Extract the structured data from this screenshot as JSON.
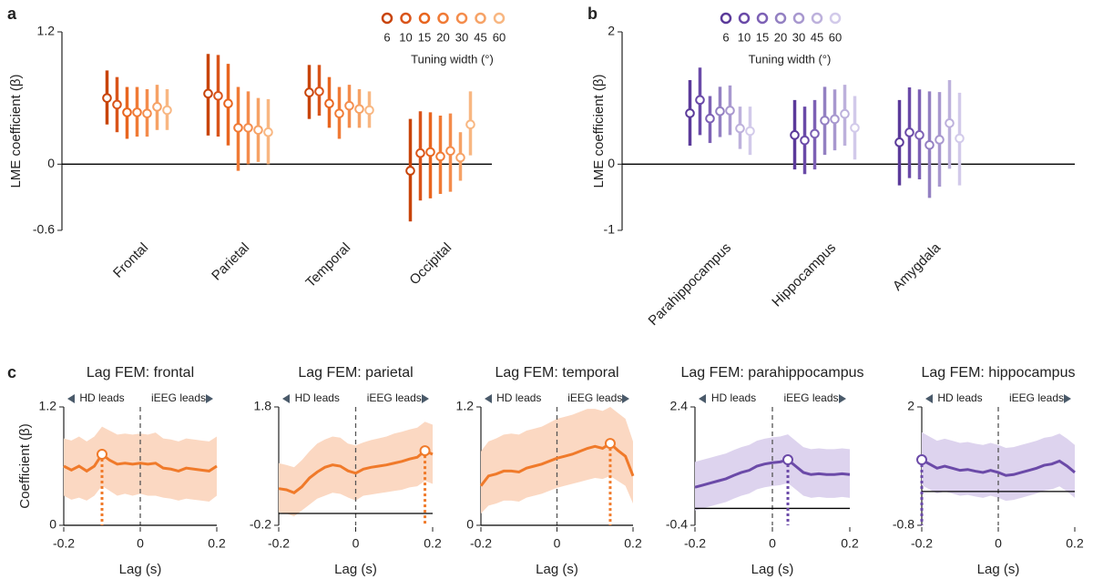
{
  "chart_data": [
    {
      "type": "errorbar",
      "panel_label": "a",
      "ylabel": "LME coefficient (β)",
      "legend_title": "Tuning width (°)",
      "categories": [
        "Frontal",
        "Parietal",
        "Temporal",
        "Occipital"
      ],
      "ylim": [
        -0.6,
        1.2
      ],
      "yticks": [
        -0.6,
        0,
        1.2
      ],
      "series": [
        {
          "name": "6",
          "color": "#c8440a",
          "values": [
            0.6,
            0.64,
            0.65,
            -0.06
          ],
          "lower": [
            0.36,
            0.26,
            0.41,
            -0.52
          ],
          "upper": [
            0.85,
            1.0,
            0.9,
            0.41
          ]
        },
        {
          "name": "10",
          "color": "#d9541a",
          "values": [
            0.54,
            0.62,
            0.66,
            0.1
          ],
          "lower": [
            0.29,
            0.25,
            0.44,
            -0.33
          ],
          "upper": [
            0.79,
            0.99,
            0.9,
            0.48
          ]
        },
        {
          "name": "15",
          "color": "#e8651f",
          "values": [
            0.47,
            0.55,
            0.55,
            0.11
          ],
          "lower": [
            0.23,
            0.17,
            0.33,
            -0.31
          ],
          "upper": [
            0.7,
            0.91,
            0.79,
            0.47
          ]
        },
        {
          "name": "20",
          "color": "#f07a35",
          "values": [
            0.47,
            0.33,
            0.46,
            0.07
          ],
          "lower": [
            0.25,
            -0.06,
            0.23,
            -0.27
          ],
          "upper": [
            0.7,
            0.7,
            0.7,
            0.44
          ]
        },
        {
          "name": "30",
          "color": "#f48c4c",
          "values": [
            0.46,
            0.33,
            0.53,
            0.12
          ],
          "lower": [
            0.25,
            0.0,
            0.33,
            -0.25
          ],
          "upper": [
            0.68,
            0.66,
            0.72,
            0.46
          ]
        },
        {
          "name": "45",
          "color": "#f6a266",
          "values": [
            0.52,
            0.31,
            0.5,
            0.06
          ],
          "lower": [
            0.31,
            0.02,
            0.33,
            -0.15
          ],
          "upper": [
            0.72,
            0.6,
            0.68,
            0.29
          ]
        },
        {
          "name": "60",
          "color": "#f8b782",
          "values": [
            0.49,
            0.29,
            0.49,
            0.36
          ],
          "lower": [
            0.31,
            0.0,
            0.33,
            0.08
          ],
          "upper": [
            0.68,
            0.59,
            0.66,
            0.66
          ]
        }
      ]
    },
    {
      "type": "errorbar",
      "panel_label": "b",
      "ylabel": "LME coefficient (β)",
      "legend_title": "Tuning width (°)",
      "categories": [
        "Parahippocampus",
        "Hippocampus",
        "Amygdala"
      ],
      "ylim": [
        -1,
        2
      ],
      "yticks": [
        -1,
        0,
        2
      ],
      "series": [
        {
          "name": "6",
          "color": "#5b3a9a",
          "values": [
            0.77,
            0.44,
            0.33
          ],
          "lower": [
            0.28,
            -0.08,
            -0.32
          ],
          "upper": [
            1.27,
            0.97,
            0.97
          ]
        },
        {
          "name": "10",
          "color": "#6a4aa8",
          "values": [
            0.97,
            0.36,
            0.48
          ],
          "lower": [
            0.44,
            -0.15,
            -0.21
          ],
          "upper": [
            1.46,
            0.87,
            1.16
          ]
        },
        {
          "name": "15",
          "color": "#7d61b5",
          "values": [
            0.69,
            0.46,
            0.44
          ],
          "lower": [
            0.32,
            -0.08,
            -0.23
          ],
          "upper": [
            1.03,
            0.97,
            1.13
          ]
        },
        {
          "name": "20",
          "color": "#9380c2",
          "values": [
            0.8,
            0.66,
            0.29
          ],
          "lower": [
            0.41,
            0.14,
            -0.51
          ],
          "upper": [
            1.17,
            1.17,
            1.1
          ]
        },
        {
          "name": "30",
          "color": "#a898cf",
          "values": [
            0.81,
            0.68,
            0.37
          ],
          "lower": [
            0.44,
            0.21,
            -0.34
          ],
          "upper": [
            1.19,
            1.13,
            1.09
          ]
        },
        {
          "name": "45",
          "color": "#bdb1dc",
          "values": [
            0.54,
            0.76,
            0.62
          ],
          "lower": [
            0.23,
            0.28,
            -0.07
          ],
          "upper": [
            0.87,
            1.2,
            1.27
          ]
        },
        {
          "name": "60",
          "color": "#d2caea",
          "values": [
            0.5,
            0.55,
            0.39
          ],
          "lower": [
            0.14,
            0.07,
            -0.32
          ],
          "upper": [
            0.87,
            1.03,
            1.08
          ]
        }
      ]
    },
    {
      "type": "line",
      "panel_label": "c",
      "title": "Lag FEM: frontal",
      "ylabel": "Coefficient (β)",
      "xlabel": "Lag (s)",
      "annotations": [
        "HD leads",
        "iEEG leads"
      ],
      "x": [
        -0.2,
        -0.18,
        -0.16,
        -0.14,
        -0.12,
        -0.1,
        -0.08,
        -0.06,
        -0.04,
        -0.02,
        0,
        0.02,
        0.04,
        0.06,
        0.08,
        0.1,
        0.12,
        0.14,
        0.16,
        0.18,
        0.2
      ],
      "xlim": [
        -0.2,
        0.2
      ],
      "xticks": [
        -0.2,
        0,
        0.2
      ],
      "ylim": [
        0,
        1.2
      ],
      "yticks": [
        0,
        1.2
      ],
      "series": [
        {
          "color": "#f07a2a",
          "band_color": "#fbd8c2",
          "values": [
            0.6,
            0.56,
            0.6,
            0.55,
            0.6,
            0.72,
            0.66,
            0.62,
            0.63,
            0.62,
            0.63,
            0.62,
            0.63,
            0.58,
            0.57,
            0.55,
            0.58,
            0.57,
            0.56,
            0.55,
            0.6
          ],
          "lower": [
            0.3,
            0.26,
            0.28,
            0.25,
            0.3,
            0.4,
            0.35,
            0.3,
            0.32,
            0.3,
            0.32,
            0.3,
            0.3,
            0.28,
            0.27,
            0.25,
            0.27,
            0.26,
            0.25,
            0.24,
            0.3
          ],
          "upper": [
            0.88,
            0.86,
            0.9,
            0.85,
            0.9,
            1.0,
            0.96,
            0.92,
            0.93,
            0.92,
            0.93,
            0.92,
            0.94,
            0.88,
            0.87,
            0.85,
            0.88,
            0.87,
            0.86,
            0.85,
            0.9
          ]
        }
      ]
    },
    {
      "type": "line",
      "title": "Lag FEM: parietal",
      "xlabel": "Lag (s)",
      "annotations": [
        "HD leads",
        "iEEG leads"
      ],
      "x": [
        -0.2,
        -0.18,
        -0.16,
        -0.14,
        -0.12,
        -0.1,
        -0.08,
        -0.06,
        -0.04,
        -0.02,
        0,
        0.02,
        0.04,
        0.06,
        0.08,
        0.1,
        0.12,
        0.14,
        0.16,
        0.18,
        0.2
      ],
      "xlim": [
        -0.2,
        0.2
      ],
      "xticks": [
        -0.2,
        0,
        0.2
      ],
      "ylim": [
        -0.2,
        1.8
      ],
      "yticks": [
        -0.2,
        1.8
      ],
      "series": [
        {
          "color": "#f07a2a",
          "band_color": "#fbd8c2",
          "values": [
            0.42,
            0.4,
            0.35,
            0.45,
            0.6,
            0.7,
            0.78,
            0.82,
            0.8,
            0.72,
            0.68,
            0.75,
            0.78,
            0.8,
            0.82,
            0.85,
            0.88,
            0.92,
            0.95,
            1.06,
            1.0
          ],
          "lower": [
            0.02,
            0.0,
            -0.05,
            0.05,
            0.15,
            0.25,
            0.3,
            0.35,
            0.33,
            0.27,
            0.22,
            0.3,
            0.32,
            0.34,
            0.36,
            0.38,
            0.4,
            0.44,
            0.46,
            0.55,
            0.5
          ],
          "upper": [
            0.85,
            0.82,
            0.78,
            0.9,
            1.05,
            1.18,
            1.25,
            1.3,
            1.28,
            1.18,
            1.15,
            1.2,
            1.24,
            1.27,
            1.3,
            1.35,
            1.38,
            1.42,
            1.45,
            1.55,
            1.5
          ]
        }
      ]
    },
    {
      "type": "line",
      "title": "Lag FEM: temporal",
      "xlabel": "Lag (s)",
      "annotations": [
        "HD leads",
        "iEEG leads"
      ],
      "x": [
        -0.2,
        -0.18,
        -0.16,
        -0.14,
        -0.12,
        -0.1,
        -0.08,
        -0.06,
        -0.04,
        -0.02,
        0,
        0.02,
        0.04,
        0.06,
        0.08,
        0.1,
        0.12,
        0.14,
        0.16,
        0.18,
        0.2
      ],
      "xlim": [
        -0.2,
        0.2
      ],
      "xticks": [
        -0.2,
        0,
        0.2
      ],
      "ylim": [
        0,
        1.2
      ],
      "yticks": [
        0,
        1.2
      ],
      "series": [
        {
          "color": "#f07a2a",
          "band_color": "#fbd8c2",
          "values": [
            0.4,
            0.5,
            0.52,
            0.55,
            0.55,
            0.54,
            0.58,
            0.6,
            0.62,
            0.65,
            0.68,
            0.7,
            0.72,
            0.75,
            0.78,
            0.8,
            0.78,
            0.83,
            0.76,
            0.7,
            0.5
          ],
          "lower": [
            0.12,
            0.2,
            0.22,
            0.25,
            0.25,
            0.24,
            0.28,
            0.3,
            0.32,
            0.35,
            0.38,
            0.4,
            0.42,
            0.44,
            0.46,
            0.48,
            0.47,
            0.5,
            0.45,
            0.4,
            0.22
          ],
          "upper": [
            0.75,
            0.85,
            0.88,
            0.92,
            0.93,
            0.92,
            0.96,
            0.98,
            1.0,
            1.04,
            1.08,
            1.1,
            1.12,
            1.15,
            1.18,
            1.18,
            1.16,
            1.2,
            1.14,
            1.08,
            0.85
          ]
        }
      ]
    },
    {
      "type": "line",
      "title": "Lag FEM: parahippocampus",
      "xlabel": "Lag (s)",
      "annotations": [
        "HD leads",
        "iEEG leads"
      ],
      "x": [
        -0.2,
        -0.18,
        -0.16,
        -0.14,
        -0.12,
        -0.1,
        -0.08,
        -0.06,
        -0.04,
        -0.02,
        0,
        0.02,
        0.04,
        0.06,
        0.08,
        0.1,
        0.12,
        0.14,
        0.16,
        0.18,
        0.2
      ],
      "xlim": [
        -0.2,
        0.2
      ],
      "xticks": [
        -0.2,
        0,
        0.2
      ],
      "ylim": [
        -0.4,
        2.4
      ],
      "yticks": [
        -0.4,
        2.4
      ],
      "series": [
        {
          "color": "#6b4aa8",
          "band_color": "#ddd3ee",
          "values": [
            0.5,
            0.55,
            0.6,
            0.65,
            0.7,
            0.78,
            0.85,
            0.9,
            1.0,
            1.05,
            1.08,
            1.1,
            1.15,
            1.0,
            0.85,
            0.8,
            0.82,
            0.8,
            0.8,
            0.82,
            0.8
          ],
          "lower": [
            -0.05,
            0,
            0.05,
            0.1,
            0.15,
            0.23,
            0.3,
            0.35,
            0.45,
            0.5,
            0.53,
            0.55,
            0.6,
            0.45,
            0.3,
            0.25,
            0.27,
            0.25,
            0.25,
            0.27,
            0.25
          ],
          "upper": [
            1.1,
            1.15,
            1.2,
            1.25,
            1.3,
            1.38,
            1.45,
            1.5,
            1.6,
            1.65,
            1.68,
            1.7,
            1.75,
            1.6,
            1.45,
            1.4,
            1.42,
            1.4,
            1.4,
            1.42,
            1.4
          ]
        }
      ]
    },
    {
      "type": "line",
      "title": "Lag FEM: hippocampus",
      "xlabel": "Lag (s)",
      "annotations": [
        "HD leads",
        "iEEG leads"
      ],
      "x": [
        -0.2,
        -0.18,
        -0.16,
        -0.14,
        -0.12,
        -0.1,
        -0.08,
        -0.06,
        -0.04,
        -0.02,
        0,
        0.02,
        0.04,
        0.06,
        0.08,
        0.1,
        0.12,
        0.14,
        0.16,
        0.18,
        0.2
      ],
      "xlim": [
        -0.2,
        0.2
      ],
      "xticks": [
        -0.2,
        0,
        0.2
      ],
      "ylim": [
        -0.8,
        2
      ],
      "yticks": [
        -0.8,
        2
      ],
      "series": [
        {
          "color": "#6b4aa8",
          "band_color": "#ddd3ee",
          "values": [
            0.75,
            0.65,
            0.55,
            0.6,
            0.55,
            0.5,
            0.52,
            0.48,
            0.45,
            0.5,
            0.45,
            0.38,
            0.4,
            0.45,
            0.5,
            0.55,
            0.62,
            0.65,
            0.72,
            0.6,
            0.45
          ],
          "lower": [
            0.15,
            0.05,
            -0.05,
            0,
            -0.05,
            -0.1,
            -0.08,
            -0.12,
            -0.15,
            -0.1,
            -0.15,
            -0.22,
            -0.2,
            -0.15,
            -0.1,
            -0.05,
            0.02,
            0.05,
            0.12,
            0,
            -0.15
          ],
          "upper": [
            1.4,
            1.3,
            1.2,
            1.25,
            1.2,
            1.15,
            1.17,
            1.13,
            1.1,
            1.15,
            1.1,
            1.03,
            1.05,
            1.1,
            1.15,
            1.2,
            1.27,
            1.3,
            1.37,
            1.25,
            1.1
          ]
        }
      ]
    }
  ]
}
